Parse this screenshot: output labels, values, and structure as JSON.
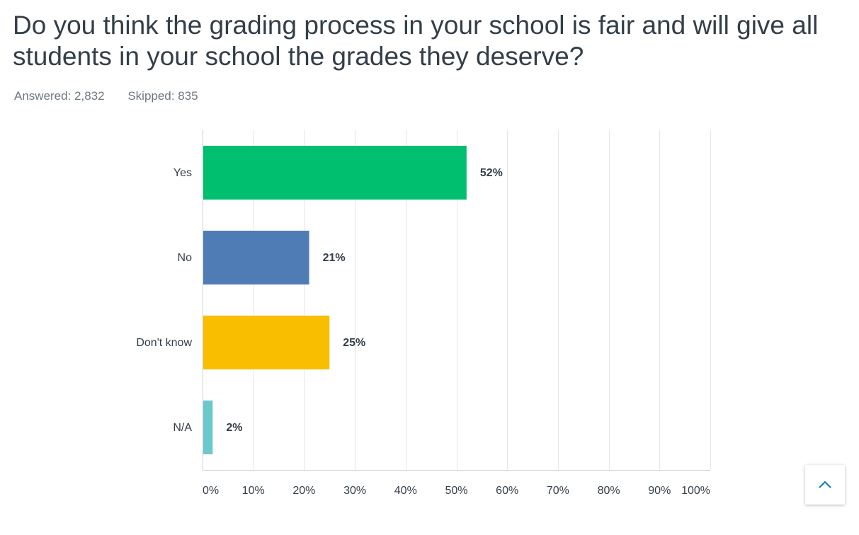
{
  "question": {
    "title": "Do you think the grading process in your school is fair and will give all students in your school the grades they deserve?",
    "answered": "Answered: 2,832",
    "skipped": "Skipped: 835"
  },
  "scroll_top": {
    "icon": "chevron-up-icon",
    "color": "#0a7cc1"
  },
  "chart_data": {
    "type": "bar",
    "orientation": "horizontal",
    "categories": [
      "Yes",
      "No",
      "Don't know",
      "N/A"
    ],
    "values": [
      52,
      21,
      25,
      2
    ],
    "value_labels": [
      "52%",
      "21%",
      "25%",
      "2%"
    ],
    "colors": [
      "#00bf6f",
      "#507cb6",
      "#f9be00",
      "#6bc8cd"
    ],
    "xlim": [
      0,
      100
    ],
    "xticks": [
      "0%",
      "10%",
      "20%",
      "30%",
      "40%",
      "50%",
      "60%",
      "70%",
      "80%",
      "90%",
      "100%"
    ],
    "grid": true,
    "grid_color": "#e5e5e5",
    "title": "",
    "xlabel": "",
    "ylabel": ""
  }
}
